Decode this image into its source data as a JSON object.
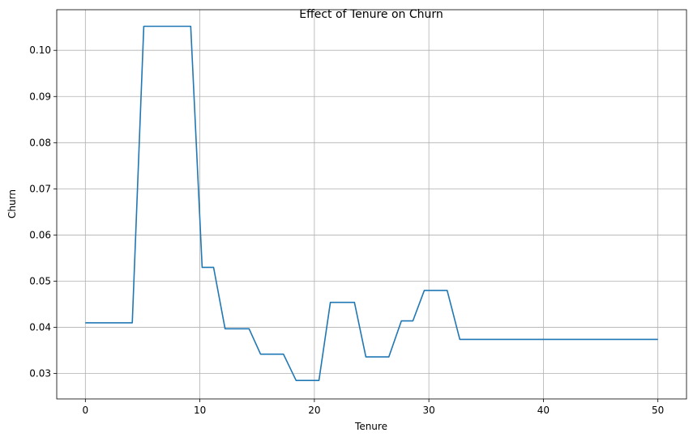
{
  "chart_data": {
    "type": "line",
    "title": "Effect of Tenure on Churn",
    "xlabel": "Tenure",
    "ylabel": "Churn",
    "xlim": [
      -2.5,
      52.5
    ],
    "ylim": [
      0.0245,
      0.1088
    ],
    "x_ticks": [
      0,
      10,
      20,
      30,
      40,
      50
    ],
    "y_ticks": [
      0.03,
      0.04,
      0.05,
      0.06,
      0.07,
      0.08,
      0.09,
      0.1
    ],
    "grid": true,
    "legend": "none",
    "series": [
      {
        "color": "#1f77b4",
        "x": [
          0,
          4.1,
          5.1,
          9.2,
          10.2,
          11.2,
          12.2,
          14.3,
          15.3,
          17.3,
          18.4,
          20.4,
          21.4,
          23.5,
          24.5,
          26.5,
          27.6,
          28.6,
          29.6,
          31.6,
          32.7,
          50
        ],
        "y": [
          0.041,
          0.041,
          0.1052,
          0.1052,
          0.053,
          0.053,
          0.0397,
          0.0397,
          0.0342,
          0.0342,
          0.0285,
          0.0285,
          0.0454,
          0.0454,
          0.0336,
          0.0336,
          0.0414,
          0.0414,
          0.048,
          0.048,
          0.0374,
          0.0374
        ]
      }
    ]
  }
}
